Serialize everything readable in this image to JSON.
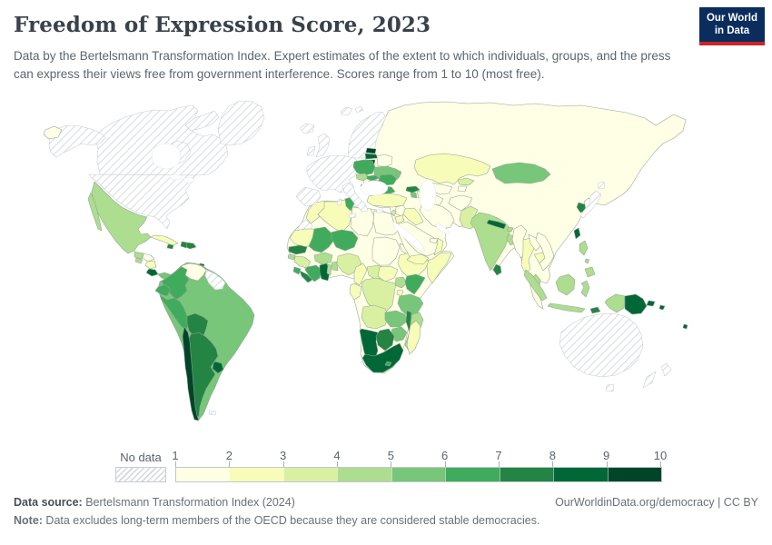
{
  "header": {
    "title": "Freedom of Expression Score, 2023",
    "subtitle": "Data by the Bertelsmann Transformation Index. Expert estimates of the extent to which individuals, groups, and the press can express their views free from government interference. Scores range from 1 to 10 (most free)."
  },
  "logo": {
    "line1": "Our World",
    "line2": "in Data",
    "bg_color": "#0a2d5e",
    "accent_color": "#cc2428"
  },
  "legend": {
    "no_data_label": "No data",
    "ticks": [
      1,
      2,
      3,
      4,
      5,
      6,
      7,
      8,
      9,
      10
    ],
    "colors": [
      "#ffffe5",
      "#f7fcb9",
      "#d9f0a3",
      "#addd8e",
      "#78c679",
      "#41ab5d",
      "#238443",
      "#006837",
      "#004529"
    ]
  },
  "footer": {
    "source_label": "Data source:",
    "source_text": " Bertelsmann Transformation Index (2024)",
    "right_text": "OurWorldinData.org/democracy | CC BY",
    "note_label": "Note:",
    "note_text": " Data excludes long-term members of the OECD because they are considered stable democracies."
  },
  "chart_data": {
    "type": "choropleth_map",
    "title": "Freedom of Expression Score",
    "year": 2023,
    "scale_min": 1,
    "scale_max": 10,
    "projection": "world",
    "no_data_regions": [
      "United States",
      "Canada",
      "Greenland",
      "Iceland",
      "United Kingdom",
      "Ireland",
      "France",
      "Germany",
      "Spain",
      "Portugal",
      "Italy",
      "Switzerland",
      "Austria",
      "Belgium",
      "Netherlands",
      "Luxembourg",
      "Denmark",
      "Norway",
      "Sweden",
      "Finland",
      "Greece",
      "Japan",
      "Australia",
      "New Zealand",
      "Guyana",
      "Suriname",
      "Western Sahara"
    ],
    "countries": {
      "mexico": {
        "name": "Mexico",
        "score": 4.5
      },
      "guatemala": {
        "name": "Guatemala",
        "score": 4.5
      },
      "el_salvador": {
        "name": "El Salvador",
        "score": 4.5
      },
      "honduras": {
        "name": "Honduras",
        "score": 1.5
      },
      "nicaragua": {
        "name": "Nicaragua",
        "score": 2.5
      },
      "costa_rica": {
        "name": "Costa Rica",
        "score": 8.5
      },
      "panama": {
        "name": "Panama",
        "score": 5.5
      },
      "cuba": {
        "name": "Cuba",
        "score": 2.5
      },
      "jamaica": {
        "name": "Jamaica",
        "score": 7.5
      },
      "haiti": {
        "name": "Haiti",
        "score": 7.5
      },
      "dominican_republic": {
        "name": "Dominican Republic",
        "score": 7.5
      },
      "trinidad_and_tobago": {
        "name": "Trinidad and Tobago",
        "score": 8.5
      },
      "colombia": {
        "name": "Colombia",
        "score": 6.5
      },
      "venezuela": {
        "name": "Venezuela",
        "score": 1.5
      },
      "ecuador": {
        "name": "Ecuador",
        "score": 6.5
      },
      "peru": {
        "name": "Peru",
        "score": 6.5
      },
      "brazil": {
        "name": "Brazil",
        "score": 5.5
      },
      "bolivia": {
        "name": "Bolivia",
        "score": 7.5
      },
      "paraguay": {
        "name": "Paraguay",
        "score": 5.5
      },
      "chile": {
        "name": "Chile",
        "score": 9.5
      },
      "argentina": {
        "name": "Argentina",
        "score": 7.5
      },
      "uruguay": {
        "name": "Uruguay",
        "score": 8.5
      },
      "estonia": {
        "name": "Estonia",
        "score": 9.5
      },
      "latvia": {
        "name": "Latvia",
        "score": 8.5
      },
      "lithuania": {
        "name": "Lithuania",
        "score": 9.5
      },
      "belarus": {
        "name": "Belarus",
        "score": 1.5
      },
      "poland": {
        "name": "Poland",
        "score": 6.5
      },
      "czechia": {
        "name": "Czechia",
        "score": 4.5
      },
      "slovakia": {
        "name": "Slovakia",
        "score": 6.5
      },
      "hungary": {
        "name": "Hungary",
        "score": 4.5
      },
      "ukraine": {
        "name": "Ukraine",
        "score": 5.5
      },
      "moldova": {
        "name": "Moldova",
        "score": 5.5
      },
      "romania": {
        "name": "Romania",
        "score": 6.5
      },
      "slovenia": {
        "name": "Slovenia",
        "score": 8.5
      },
      "croatia": {
        "name": "Croatia",
        "score": 5.5
      },
      "bosnia_and_herzegovina": {
        "name": "Bosnia and Herzegovina",
        "score": 4.5
      },
      "serbia": {
        "name": "Serbia",
        "score": 7.5
      },
      "albania": {
        "name": "Albania",
        "score": 5.5
      },
      "north_macedonia": {
        "name": "North Macedonia",
        "score": 5.5
      },
      "bulgaria": {
        "name": "Bulgaria",
        "score": 6.5
      },
      "turkey": {
        "name": "Turkey",
        "score": 2.5
      },
      "georgia": {
        "name": "Georgia",
        "score": 7.5
      },
      "armenia": {
        "name": "Armenia",
        "score": 5.5
      },
      "azerbaijan": {
        "name": "Azerbaijan",
        "score": 2.5
      },
      "russia": {
        "name": "Russia",
        "score": 1.5
      },
      "china": {
        "name": "China",
        "score": 1.5
      },
      "north_korea": {
        "name": "North Korea",
        "score": 1.5
      },
      "south_korea": {
        "name": "South Korea",
        "score": 7.5
      },
      "taiwan": {
        "name": "Taiwan",
        "score": 8.5
      },
      "mongolia": {
        "name": "Mongolia",
        "score": 5.5
      },
      "kazakhstan": {
        "name": "Kazakhstan",
        "score": 2.5
      },
      "uzbekistan": {
        "name": "Uzbekistan",
        "score": 1.5
      },
      "turkmenistan": {
        "name": "Turkmenistan",
        "score": 1.5
      },
      "kyrgyzstan": {
        "name": "Kyrgyzstan",
        "score": 3.5
      },
      "tajikistan": {
        "name": "Tajikistan",
        "score": 1.5
      },
      "afghanistan": {
        "name": "Afghanistan",
        "score": 1.5
      },
      "pakistan": {
        "name": "Pakistan",
        "score": 3.5
      },
      "india": {
        "name": "India",
        "score": 4.5
      },
      "nepal": {
        "name": "Nepal",
        "score": 8.5
      },
      "bhutan": {
        "name": "Bhutan",
        "score": 4.5
      },
      "bangladesh": {
        "name": "Bangladesh",
        "score": 4.5
      },
      "sri_lanka": {
        "name": "Sri Lanka",
        "score": 7.5
      },
      "myanmar": {
        "name": "Myanmar",
        "score": 1.5
      },
      "thailand": {
        "name": "Thailand",
        "score": 2.5
      },
      "laos": {
        "name": "Laos",
        "score": 1.5
      },
      "cambodia": {
        "name": "Cambodia",
        "score": 2.5
      },
      "vietnam": {
        "name": "Vietnam",
        "score": 1.5
      },
      "malaysia": {
        "name": "Malaysia",
        "score": 4.5
      },
      "indonesia": {
        "name": "Indonesia",
        "score": 4.5
      },
      "philippines": {
        "name": "Philippines",
        "score": 4.5
      },
      "papua_new_guinea": {
        "name": "Papua New Guinea",
        "score": 8.5
      },
      "timor_leste": {
        "name": "Timor-Leste",
        "score": 7.5
      },
      "solomon_islands": {
        "name": "Solomon Islands",
        "score": 8.5
      },
      "fiji": {
        "name": "Fiji",
        "score": 8.5
      },
      "syria": {
        "name": "Syria",
        "score": 1.5
      },
      "lebanon": {
        "name": "Lebanon",
        "score": 3.5
      },
      "jordan": {
        "name": "Jordan",
        "score": 2.5
      },
      "iraq": {
        "name": "Iraq",
        "score": 2.5
      },
      "iran": {
        "name": "Iran",
        "score": 1.5
      },
      "saudi_arabia": {
        "name": "Saudi Arabia",
        "score": 1.5
      },
      "yemen": {
        "name": "Yemen",
        "score": 2.5
      },
      "oman": {
        "name": "Oman",
        "score": 2.5
      },
      "united_arab_emirates": {
        "name": "United Arab Emirates",
        "score": 1.5
      },
      "morocco": {
        "name": "Morocco",
        "score": 2.5
      },
      "algeria": {
        "name": "Algeria",
        "score": 2.5
      },
      "tunisia": {
        "name": "Tunisia",
        "score": 6.5
      },
      "libya": {
        "name": "Libya",
        "score": 1.5
      },
      "egypt": {
        "name": "Egypt",
        "score": 1.5
      },
      "mauritania": {
        "name": "Mauritania",
        "score": 2.5
      },
      "mali": {
        "name": "Mali",
        "score": 6.5
      },
      "niger": {
        "name": "Niger",
        "score": 6.5
      },
      "chad": {
        "name": "Chad",
        "score": 1.5
      },
      "sudan": {
        "name": "Sudan",
        "score": 1.5
      },
      "south_sudan": {
        "name": "South Sudan",
        "score": 2.5
      },
      "eritrea": {
        "name": "Eritrea",
        "score": 1.5
      },
      "ethiopia": {
        "name": "Ethiopia",
        "score": 2.5
      },
      "somalia": {
        "name": "Somalia",
        "score": 2.5
      },
      "senegal": {
        "name": "Senegal",
        "score": 7.5
      },
      "guinea_bissau": {
        "name": "Guinea-Bissau",
        "score": 4.5
      },
      "guinea": {
        "name": "Guinea",
        "score": 3.5
      },
      "sierra_leone": {
        "name": "Sierra Leone",
        "score": 6.5
      },
      "liberia": {
        "name": "Liberia",
        "score": 7.5
      },
      "cote_divoire": {
        "name": "Cote d'Ivoire",
        "score": 6.5
      },
      "ghana": {
        "name": "Ghana",
        "score": 8.5
      },
      "togo": {
        "name": "Togo",
        "score": 4.5
      },
      "benin": {
        "name": "Benin",
        "score": 4.5
      },
      "burkina_faso": {
        "name": "Burkina Faso",
        "score": 4.5
      },
      "nigeria": {
        "name": "Nigeria",
        "score": 3.5
      },
      "cameroon": {
        "name": "Cameroon",
        "score": 2.5
      },
      "central_african_republic": {
        "name": "Central African Republic",
        "score": 3.5
      },
      "gabon": {
        "name": "Gabon",
        "score": 2.5
      },
      "drc": {
        "name": "Democratic Republic of Congo",
        "score": 3.5
      },
      "uganda": {
        "name": "Uganda",
        "score": 4.5
      },
      "kenya": {
        "name": "Kenya",
        "score": 6.5
      },
      "rwanda": {
        "name": "Rwanda",
        "score": 2.5
      },
      "tanzania": {
        "name": "Tanzania",
        "score": 5.5
      },
      "angola": {
        "name": "Angola",
        "score": 3.5
      },
      "zambia": {
        "name": "Zambia",
        "score": 5.5
      },
      "malawi": {
        "name": "Malawi",
        "score": 7.5
      },
      "mozambique": {
        "name": "Mozambique",
        "score": 4.5
      },
      "zimbabwe": {
        "name": "Zimbabwe",
        "score": 5.5
      },
      "botswana": {
        "name": "Botswana",
        "score": 7.5
      },
      "namibia": {
        "name": "Namibia",
        "score": 8.5
      },
      "south_africa": {
        "name": "South Africa",
        "score": 8.5
      },
      "lesotho": {
        "name": "Lesotho",
        "score": 6.5
      },
      "madagascar": {
        "name": "Madagascar",
        "score": 2.5
      }
    }
  }
}
